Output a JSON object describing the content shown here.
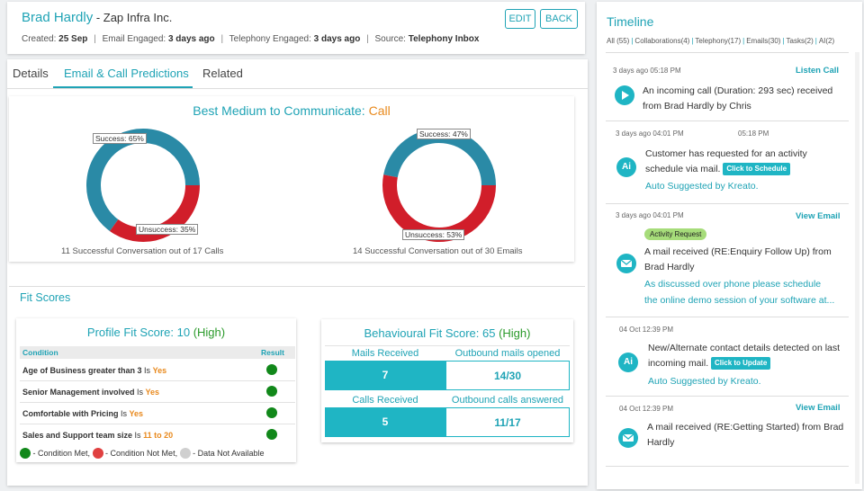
{
  "header": {
    "name": "Brad Hardly",
    "company": " - Zap Infra Inc.",
    "created_label": "Created: ",
    "created_value": "25 Sep",
    "email_label": "Email Engaged: ",
    "email_value": "3 days ago",
    "tel_label": "Telephony Engaged: ",
    "tel_value": "3 days ago",
    "source_label": "Source: ",
    "source_value": "Telephony Inbox",
    "separator": "|",
    "edit_label": "EDIT",
    "back_label": "BACK"
  },
  "tabs": {
    "details": "Details",
    "predictions": "Email & Call Predictions",
    "related": "Related"
  },
  "prediction": {
    "title": "Best Medium to Communicate: ",
    "best": "Call",
    "calls": {
      "success_label": "Success: 65%",
      "unsuccess_label": "Unsuccess: 35%",
      "success_pct": 65,
      "caption": "11 Successful Conversation out of 17 Calls"
    },
    "emails": {
      "success_label": "Success: 47%",
      "unsuccess_label": "Unsuccess: 53%",
      "success_pct": 47,
      "caption": "14 Successful Conversation out of 30 Emails"
    },
    "colors": {
      "success": "#2a8aa6",
      "success_light": "#2fa8c6",
      "unsuccess": "#d11e2a",
      "unsuccess_dark": "#a51c22"
    }
  },
  "fit": {
    "section_title": "Fit Scores",
    "profile": {
      "title": "Profile Fit Score: 10 ",
      "level": "(High)",
      "col_condition": "Condition",
      "col_result": "Result",
      "rows": [
        {
          "text": "Age of Business greater than 3",
          "is": " Is ",
          "value": "Yes"
        },
        {
          "text": "Senior Management involved",
          "is": " Is ",
          "value": "Yes"
        },
        {
          "text": "Comfortable with Pricing",
          "is": " Is ",
          "value": "Yes"
        },
        {
          "text": "Sales and Support team size",
          "is": " Is ",
          "value": "11 to 20"
        }
      ],
      "legend_met": " - Condition Met, ",
      "legend_not_met": " - Condition Not Met, ",
      "legend_na": " - Data Not Available"
    },
    "behavioural": {
      "title": "Behavioural Fit Score: 65 ",
      "level": "(High)",
      "mails_received_label": "Mails Received",
      "mails_received": "7",
      "outbound_opened_label": "Outbound mails opened",
      "outbound_opened": "14/30",
      "calls_received_label": "Calls Received",
      "calls_received": "5",
      "outbound_answered_label": "Outbound calls answered",
      "outbound_answered": "11/17"
    }
  },
  "timeline": {
    "title": "Timeline",
    "filters": [
      "All (55)",
      "Collaborations(4)",
      "Telephony(17)",
      "Emails(30)",
      "Tasks(2)",
      "AI(2)"
    ],
    "items": [
      {
        "time": "3 days ago 05:18 PM",
        "action": "Listen Call",
        "text": "An incoming call (Duration: 293 sec) received from Brad Hardly by Chris"
      },
      {
        "time": "3 days ago 04:01 PM",
        "time2": "05:18 PM",
        "text": "Customer has requested for an activity schedule via mail.",
        "button": "Click to Schedule",
        "sub": "Auto Suggested by Kreato.",
        "icon": "Ai"
      },
      {
        "time": "3 days ago 04:01 PM",
        "action": "View Email",
        "badge": "Activity Request",
        "text": "A mail received (RE:Enquiry Follow Up) from Brad Hardly",
        "sub1": "As discussed over phone please schedule",
        "sub2": "the online demo session of your software at..."
      },
      {
        "time": "04 Oct 12:39 PM",
        "text": "New/Alternate contact details detected on last incoming mail.",
        "button": "Click to Update",
        "sub": "Auto Suggested by Kreato.",
        "icon": "Ai"
      },
      {
        "time": "04 Oct 12:39 PM",
        "action": "View Email",
        "text": "A mail received (RE:Getting Started) from Brad Hardly"
      }
    ]
  }
}
